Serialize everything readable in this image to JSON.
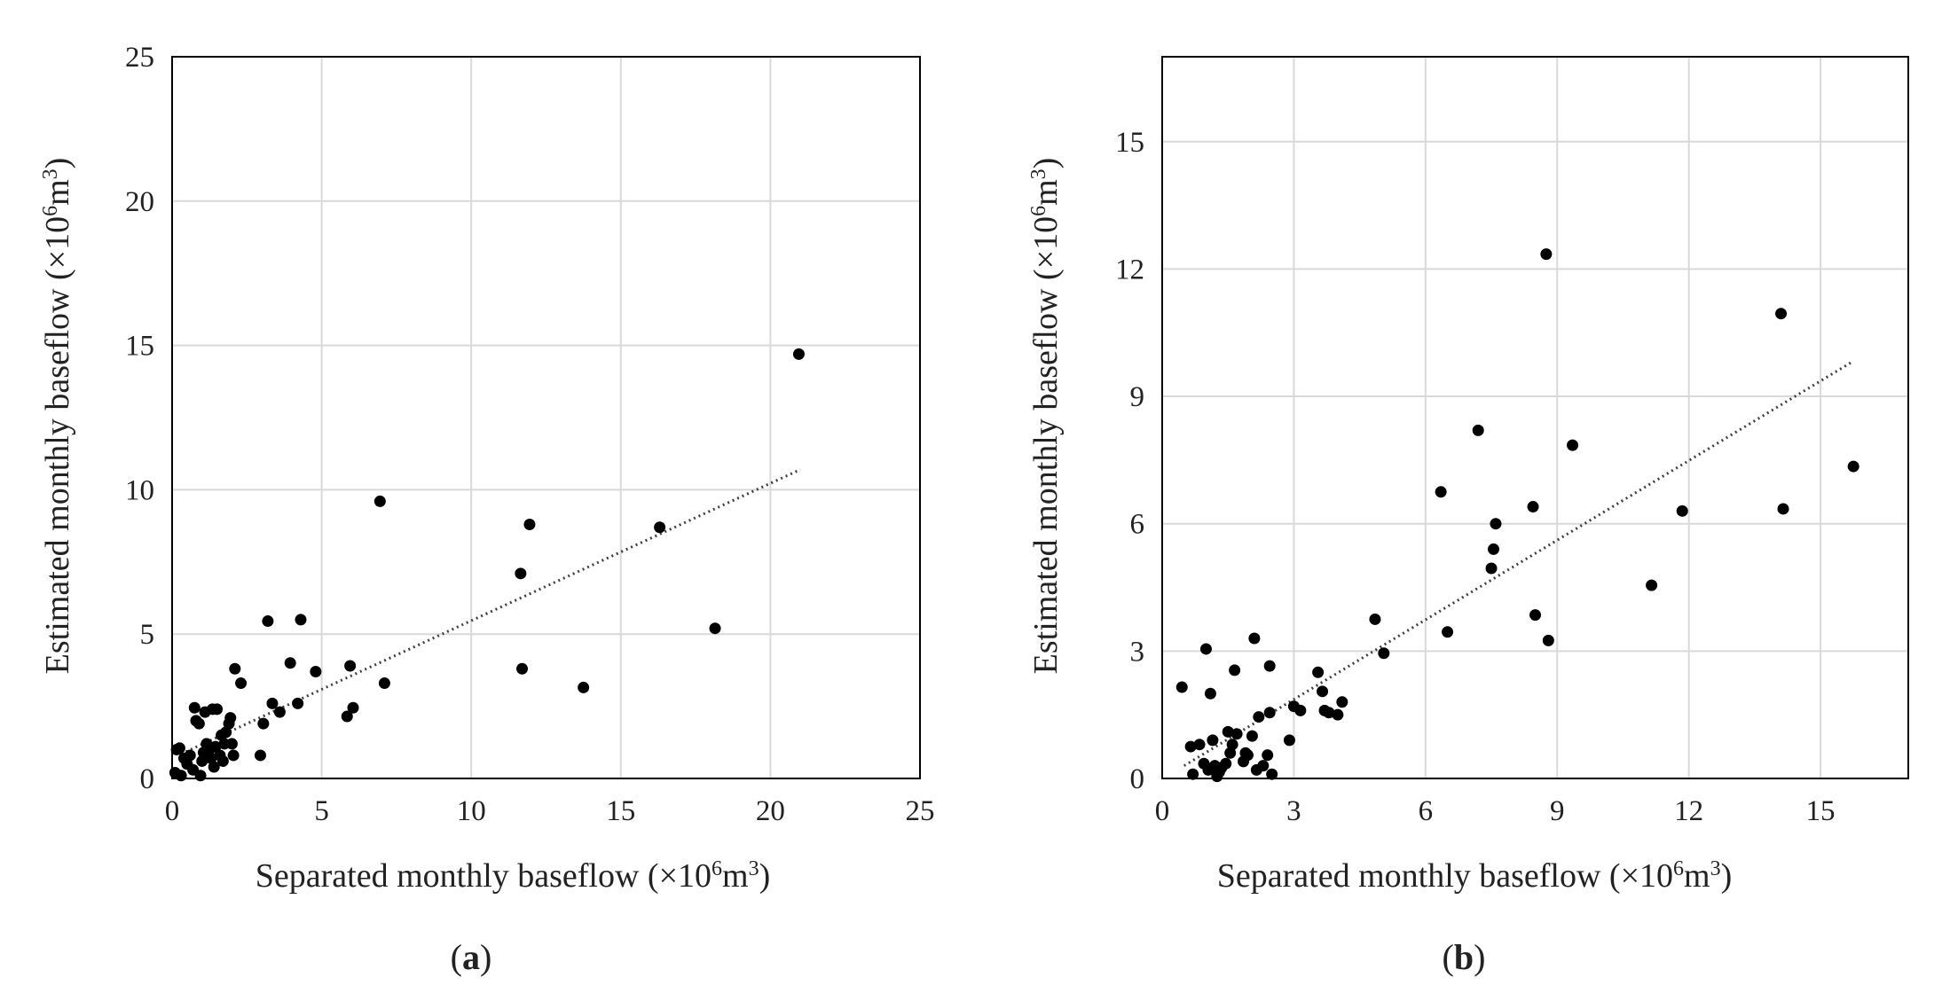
{
  "figure": {
    "panels": [
      {
        "id": "a",
        "caption_open": "(",
        "caption_letter": "a",
        "caption_close": ")",
        "xlabel_main": "Separated monthly baseflow (×10",
        "xlabel_sup": "6",
        "xlabel_tail": "m",
        "xlabel_sup2": "3",
        "xlabel_end": ")",
        "ylabel_main": "Estimated monthly baseflow (×10",
        "ylabel_sup": "6",
        "ylabel_tail": "m",
        "ylabel_sup2": "3",
        "ylabel_end": ")"
      },
      {
        "id": "b",
        "caption_open": "(",
        "caption_letter": "b",
        "caption_close": ")",
        "xlabel_main": "Separated monthly baseflow (×10",
        "xlabel_sup": "6",
        "xlabel_tail": "m",
        "xlabel_sup2": "3",
        "xlabel_end": ")",
        "ylabel_main": "Estimated monthly baseflow (×10",
        "ylabel_sup": "6",
        "ylabel_tail": "m",
        "ylabel_sup2": "3",
        "ylabel_end": ")"
      }
    ]
  },
  "colors": {
    "points": "#000000",
    "grid": "#d9d9d9",
    "axes": "#000000",
    "trendline": "#404040",
    "text": "#222222"
  },
  "chart_data": [
    {
      "type": "scatter",
      "title": "",
      "panel": "a",
      "xlabel": "Separated monthly baseflow (×10⁶m³)",
      "ylabel": "Estimated monthly baseflow (×10⁶m³)",
      "xlim": [
        0,
        25
      ],
      "ylim": [
        0,
        25
      ],
      "xticks": [
        0,
        5,
        10,
        15,
        20,
        25
      ],
      "yticks": [
        0,
        5,
        10,
        15,
        20,
        25
      ],
      "xtick_labels": [
        "0",
        "5",
        "10",
        "15",
        "20",
        "25"
      ],
      "ytick_labels": [
        "0",
        "5",
        "10",
        "15",
        "20",
        "25"
      ],
      "grid": true,
      "trendline": {
        "style": "dotted",
        "x": [
          0.3,
          21.0
        ],
        "y": [
          0.85,
          10.7
        ]
      },
      "points": [
        [
          0.1,
          0.2
        ],
        [
          0.15,
          1.0
        ],
        [
          0.25,
          1.05
        ],
        [
          0.3,
          0.1
        ],
        [
          0.4,
          0.7
        ],
        [
          0.5,
          0.5
        ],
        [
          0.6,
          0.8
        ],
        [
          0.7,
          0.3
        ],
        [
          0.75,
          2.45
        ],
        [
          0.8,
          2.0
        ],
        [
          0.9,
          1.9
        ],
        [
          0.95,
          0.1
        ],
        [
          1.0,
          0.6
        ],
        [
          1.05,
          0.9
        ],
        [
          1.1,
          2.3
        ],
        [
          1.15,
          1.2
        ],
        [
          1.2,
          0.85
        ],
        [
          1.25,
          1.0
        ],
        [
          1.3,
          0.7
        ],
        [
          1.35,
          2.4
        ],
        [
          1.4,
          0.4
        ],
        [
          1.45,
          1.1
        ],
        [
          1.5,
          2.4
        ],
        [
          1.6,
          0.8
        ],
        [
          1.65,
          1.5
        ],
        [
          1.7,
          0.6
        ],
        [
          1.75,
          1.2
        ],
        [
          1.8,
          1.6
        ],
        [
          1.9,
          1.9
        ],
        [
          1.95,
          2.1
        ],
        [
          2.0,
          1.2
        ],
        [
          2.05,
          0.8
        ],
        [
          2.1,
          3.8
        ],
        [
          2.3,
          3.3
        ],
        [
          2.95,
          0.8
        ],
        [
          3.05,
          1.9
        ],
        [
          3.2,
          5.45
        ],
        [
          3.35,
          2.6
        ],
        [
          3.6,
          2.3
        ],
        [
          3.95,
          4.0
        ],
        [
          4.2,
          2.6
        ],
        [
          4.3,
          5.5
        ],
        [
          4.8,
          3.7
        ],
        [
          5.85,
          2.15
        ],
        [
          5.95,
          3.9
        ],
        [
          6.05,
          2.45
        ],
        [
          6.95,
          9.6
        ],
        [
          7.1,
          3.3
        ],
        [
          11.65,
          7.1
        ],
        [
          11.7,
          3.8
        ],
        [
          11.95,
          8.8
        ],
        [
          13.75,
          3.15
        ],
        [
          16.3,
          8.7
        ],
        [
          18.15,
          5.2
        ],
        [
          20.95,
          14.7
        ]
      ]
    },
    {
      "type": "scatter",
      "title": "",
      "panel": "b",
      "xlabel": "Separated monthly baseflow (×10⁶m³)",
      "ylabel": "Estimated monthly baseflow (×10⁶m³)",
      "xlim": [
        0,
        17
      ],
      "ylim": [
        0,
        17
      ],
      "xticks": [
        0,
        3,
        6,
        9,
        12,
        15
      ],
      "yticks": [
        0,
        3,
        6,
        9,
        12,
        15
      ],
      "xtick_labels": [
        "0",
        "3",
        "6",
        "9",
        "12",
        "15"
      ],
      "ytick_labels": [
        "0",
        "3",
        "6",
        "9",
        "12",
        "15"
      ],
      "grid": true,
      "trendline": {
        "style": "dotted",
        "x": [
          0.5,
          15.7
        ],
        "y": [
          0.3,
          9.8
        ]
      },
      "points": [
        [
          0.45,
          2.15
        ],
        [
          0.65,
          0.75
        ],
        [
          0.7,
          0.1
        ],
        [
          0.85,
          0.8
        ],
        [
          0.95,
          0.35
        ],
        [
          1.0,
          3.05
        ],
        [
          1.05,
          0.2
        ],
        [
          1.1,
          2.0
        ],
        [
          1.15,
          0.9
        ],
        [
          1.2,
          0.3
        ],
        [
          1.25,
          0.05
        ],
        [
          1.3,
          0.15
        ],
        [
          1.35,
          0.25
        ],
        [
          1.45,
          0.35
        ],
        [
          1.5,
          1.1
        ],
        [
          1.55,
          0.6
        ],
        [
          1.6,
          0.8
        ],
        [
          1.65,
          2.55
        ],
        [
          1.7,
          1.05
        ],
        [
          1.85,
          0.4
        ],
        [
          1.9,
          0.6
        ],
        [
          1.95,
          0.55
        ],
        [
          2.05,
          1.0
        ],
        [
          2.1,
          3.3
        ],
        [
          2.15,
          0.2
        ],
        [
          2.2,
          1.45
        ],
        [
          2.3,
          0.3
        ],
        [
          2.4,
          0.55
        ],
        [
          2.45,
          1.55
        ],
        [
          2.45,
          2.65
        ],
        [
          2.5,
          0.1
        ],
        [
          2.9,
          0.9
        ],
        [
          3.0,
          1.7
        ],
        [
          3.15,
          1.6
        ],
        [
          3.55,
          2.5
        ],
        [
          3.65,
          2.05
        ],
        [
          3.7,
          1.6
        ],
        [
          3.8,
          1.55
        ],
        [
          4.0,
          1.5
        ],
        [
          4.1,
          1.8
        ],
        [
          4.85,
          3.75
        ],
        [
          5.05,
          2.95
        ],
        [
          6.35,
          6.75
        ],
        [
          6.5,
          3.45
        ],
        [
          7.2,
          8.2
        ],
        [
          7.5,
          4.95
        ],
        [
          7.55,
          5.4
        ],
        [
          7.6,
          6.0
        ],
        [
          8.45,
          6.4
        ],
        [
          8.5,
          3.85
        ],
        [
          8.75,
          12.35
        ],
        [
          8.8,
          3.25
        ],
        [
          9.35,
          7.85
        ],
        [
          11.15,
          4.55
        ],
        [
          11.85,
          6.3
        ],
        [
          14.1,
          10.95
        ],
        [
          14.15,
          6.35
        ],
        [
          15.75,
          7.35
        ]
      ]
    }
  ]
}
